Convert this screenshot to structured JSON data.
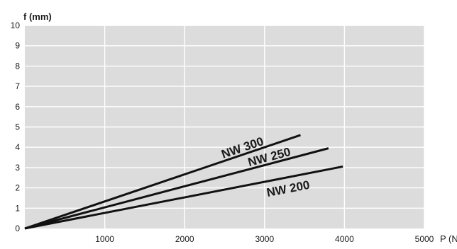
{
  "chart_data": {
    "type": "line",
    "ylabel": "f (mm)",
    "xlabel": "P (N)",
    "xlim": [
      0,
      5000
    ],
    "ylim": [
      0,
      10
    ],
    "x_ticks": [
      1000,
      2000,
      3000,
      4000,
      5000
    ],
    "x_tick_labels": [
      "1000",
      "2000",
      "3000",
      "4000",
      "5000"
    ],
    "y_ticks": [
      0,
      1,
      2,
      3,
      4,
      5,
      6,
      7,
      8,
      9,
      10
    ],
    "y_tick_labels": [
      "0",
      "1",
      "2",
      "3",
      "4",
      "5",
      "6",
      "7",
      "8",
      "9",
      "10"
    ],
    "grid": true,
    "series": [
      {
        "name": "NW 300",
        "x": [
          0,
          3450
        ],
        "y": [
          0,
          4.6
        ]
      },
      {
        "name": "NW 250",
        "x": [
          0,
          3800
        ],
        "y": [
          0,
          3.95
        ]
      },
      {
        "name": "NW 200",
        "x": [
          0,
          3980
        ],
        "y": [
          0,
          3.05
        ]
      }
    ]
  },
  "colors": {
    "plot_background": "#dcdcdc",
    "grid": "#ffffff",
    "line": "#111111"
  }
}
